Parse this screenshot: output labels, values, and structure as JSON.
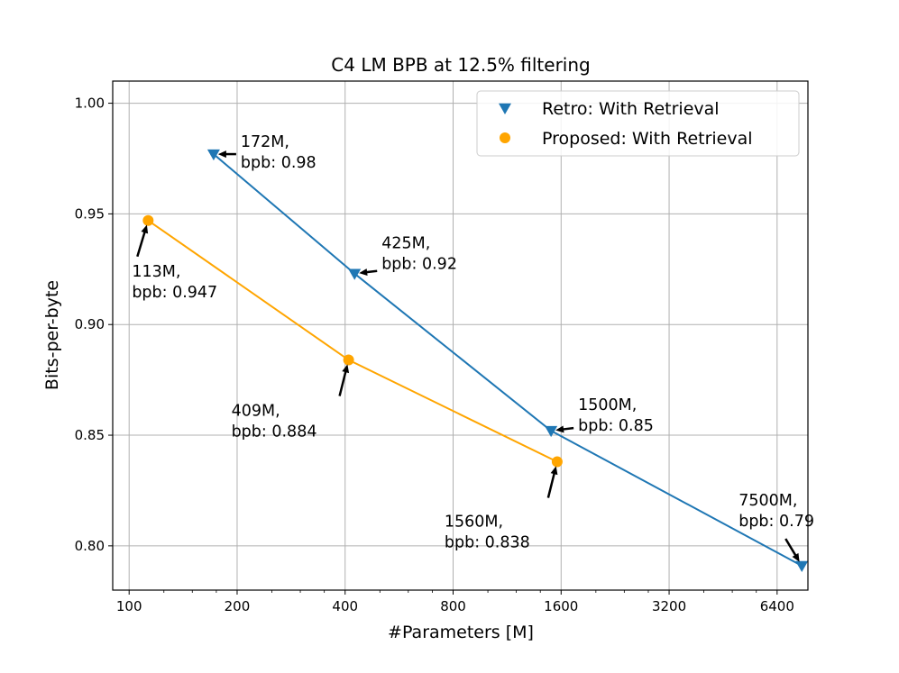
{
  "chart_data": {
    "type": "line",
    "title": "C4 LM BPB at 12.5% filtering",
    "xlabel": "#Parameters [M]",
    "ylabel": "Bits-per-byte",
    "xscale": "log2",
    "xlim": [
      90,
      7800
    ],
    "ylim": [
      0.78,
      1.01
    ],
    "xticks": [
      100,
      200,
      400,
      800,
      1600,
      3200,
      6400
    ],
    "xtick_labels": [
      "100",
      "200",
      "400",
      "800",
      "1600",
      "3200",
      "6400"
    ],
    "yticks": [
      0.8,
      0.85,
      0.9,
      0.95,
      1.0
    ],
    "ytick_labels": [
      "0.80",
      "0.85",
      "0.90",
      "0.95",
      "1.00"
    ],
    "grid": true,
    "legend_position": "top-right",
    "series": [
      {
        "name": "Retro: With Retrieval",
        "marker": "triangle-down",
        "color": "#1f77b4",
        "x": [
          172,
          425,
          1500,
          7500
        ],
        "y": [
          0.977,
          0.923,
          0.852,
          0.791
        ],
        "annotations": [
          {
            "lines": [
              "172M,",
              "bpb: 0.98"
            ]
          },
          {
            "lines": [
              "425M,",
              "bpb: 0.92"
            ]
          },
          {
            "lines": [
              "1500M,",
              "bpb: 0.85"
            ]
          },
          {
            "lines": [
              "7500M,",
              "bpb: 0.79"
            ]
          }
        ]
      },
      {
        "name": "Proposed: With Retrieval",
        "marker": "circle",
        "color": "#ffa500",
        "x": [
          113,
          409,
          1560
        ],
        "y": [
          0.947,
          0.884,
          0.838
        ],
        "annotations": [
          {
            "lines": [
              "113M,",
              "bpb: 0.947"
            ]
          },
          {
            "lines": [
              "409M,",
              "bpb: 0.884"
            ]
          },
          {
            "lines": [
              "1560M,",
              "bpb: 0.838"
            ]
          }
        ]
      }
    ]
  }
}
